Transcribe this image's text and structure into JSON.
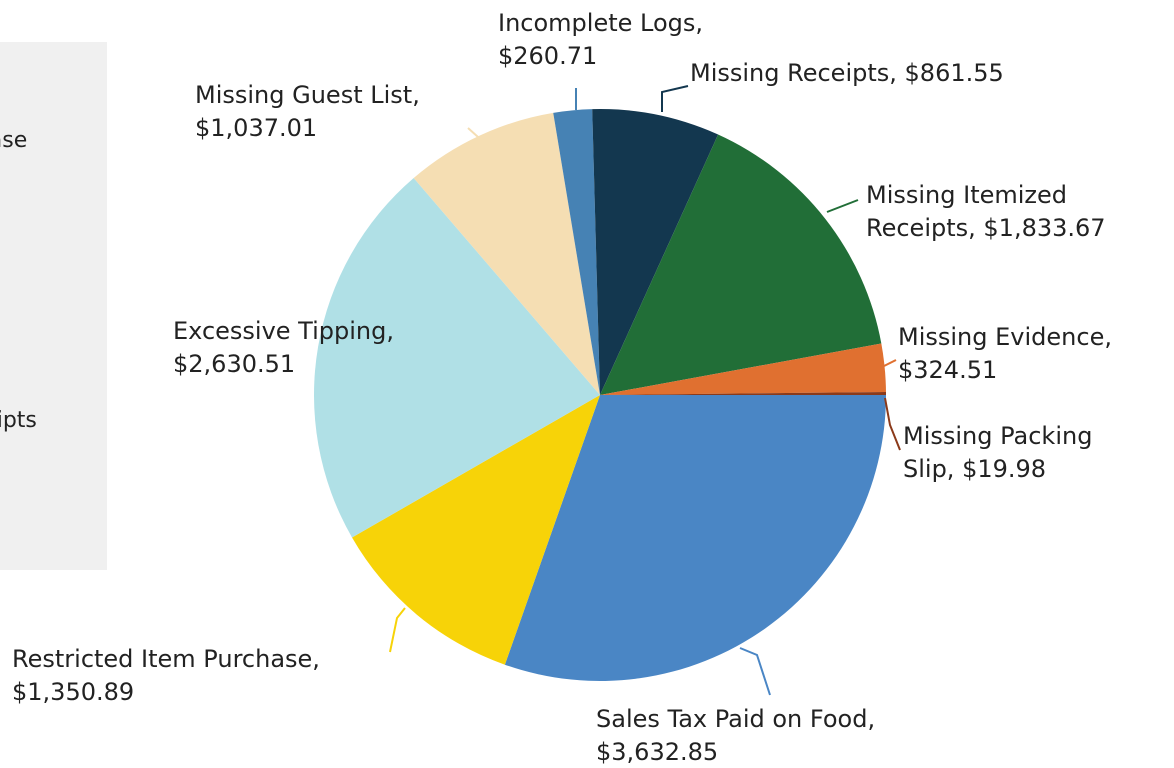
{
  "chart_data": {
    "type": "pie",
    "categories": [
      "Sales Tax Paid on Food",
      "Restricted Item Purchase",
      "Excessive Tipping",
      "Missing Guest List",
      "Incomplete Logs",
      "Missing Receipts",
      "Missing Itemized Receipts",
      "Missing Evidence",
      "Missing Packing Slip"
    ],
    "values": [
      3632.85,
      1350.89,
      2630.51,
      1037.01,
      260.71,
      861.55,
      1833.67,
      324.51,
      19.98
    ],
    "value_labels": [
      [
        "Sales Tax Paid on Food,",
        "$3,632.85"
      ],
      [
        "Restricted Item Purchase,",
        "$1,350.89"
      ],
      [
        "Excessive Tipping,",
        "$2,630.51"
      ],
      [
        "Missing Guest List,",
        "$1,037.01"
      ],
      [
        "Incomplete Logs,",
        "$260.71"
      ],
      [
        "Missing Receipts, $861.55"
      ],
      [
        "Missing Itemized",
        "Receipts, $1,833.67"
      ],
      [
        "Missing Evidence,",
        "$324.51"
      ],
      [
        "Missing Packing",
        "Slip, $19.98"
      ]
    ],
    "colors": [
      "#4a86c5",
      "#f7d308",
      "#b0e0e6",
      "#f5deb3",
      "#4682b4",
      "#13374f",
      "#216e37",
      "#e07030",
      "#8b3a1a"
    ],
    "legend": "left"
  }
}
